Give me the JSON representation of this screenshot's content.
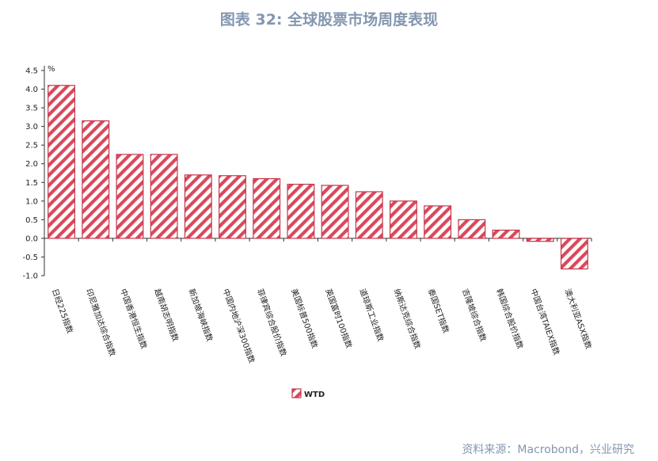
{
  "title": "图表 32: 全球股票市场周度表现",
  "source": "资料来源：Macrobond，兴业研究",
  "colors": {
    "title": "#8497b0",
    "bar_stroke": "#c8344a",
    "hatch": "#d9495b"
  },
  "chart_data": {
    "type": "bar",
    "unit": "%",
    "categories": [
      "日经225指数",
      "印尼雅加达综合指数",
      "中国香港恒生指数",
      "越南胡志明指数",
      "新加坡海峡指数",
      "中国内地沪深300指数",
      "菲律宾综合股价指数",
      "美国标普500指数",
      "英国富时100指数",
      "道琼斯工业指数",
      "纳斯达克综合指数",
      "泰国SET指数",
      "吉隆坡综合指数",
      "韩国综合股价指数",
      "中国台湾TAIEX指数",
      "澳大利亚ASX指数"
    ],
    "series": [
      {
        "name": "WTD",
        "values": [
          4.1,
          3.15,
          2.25,
          2.25,
          1.7,
          1.68,
          1.6,
          1.45,
          1.42,
          1.25,
          1.0,
          0.87,
          0.5,
          0.22,
          -0.08,
          -0.82
        ]
      }
    ],
    "ylim": [
      -1.0,
      4.5
    ],
    "yticks": [
      "4.5",
      "4.0",
      "3.5",
      "3.0",
      "2.5",
      "2.0",
      "1.5",
      "1.0",
      "0.5",
      "0.0",
      "-0.5",
      "-1.0"
    ],
    "legend_position": "bottom-center",
    "grid": false
  }
}
